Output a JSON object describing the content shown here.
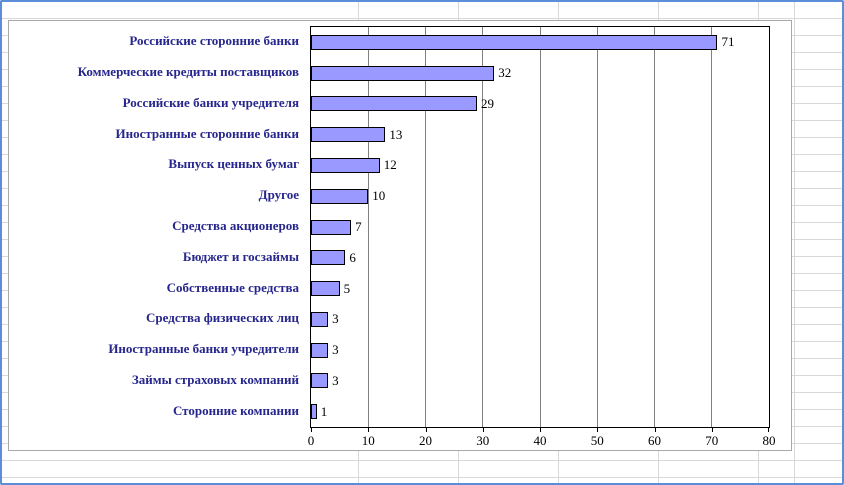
{
  "chart_data": {
    "type": "bar",
    "orientation": "horizontal",
    "title": "",
    "xlabel": "",
    "ylabel": "",
    "categories": [
      "Российские сторонние банки",
      "Коммерческие кредиты поставщиков",
      "Российские банки учредителя",
      "Иностранные сторонние банки",
      "Выпуск ценных бумаг",
      "Другое",
      "Средства акционеров",
      "Бюджет и госзаймы",
      "Собственные средства",
      "Средства физических лиц",
      "Иностранные банки учредители",
      "Займы страховых компаний",
      "Сторонние компании"
    ],
    "values": [
      71,
      32,
      29,
      13,
      12,
      10,
      7,
      6,
      5,
      3,
      3,
      3,
      1
    ],
    "xlim": [
      0,
      80
    ],
    "xticks": [
      0,
      10,
      20,
      30,
      40,
      50,
      60,
      70,
      80
    ],
    "grid": true,
    "legend": "none",
    "colors": {
      "bar_fill": "#9999FF",
      "bar_border": "#000000",
      "category_label": "#26268c",
      "value_label": "#000000",
      "plot_gridline": "#808080",
      "sheet_gridline": "#d8d8d8",
      "frame": "#5b8dd9"
    }
  }
}
